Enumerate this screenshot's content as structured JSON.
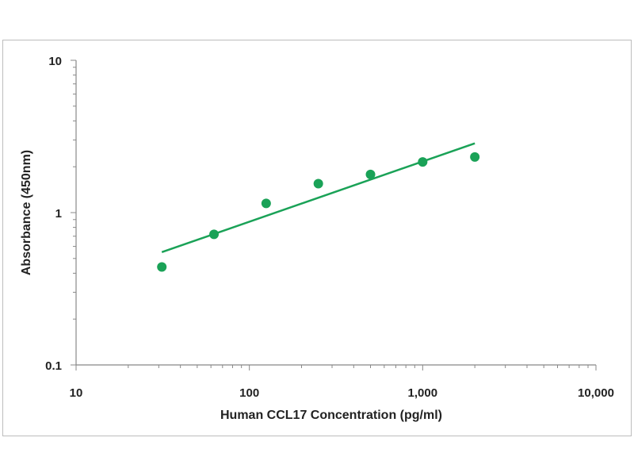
{
  "chart_data": {
    "type": "scatter",
    "title": "",
    "xlabel": "Human CCL17 Concentration (pg/ml)",
    "ylabel": "Absorbance (450nm)",
    "x_scale": "log",
    "y_scale": "log",
    "xlim": [
      10,
      10000
    ],
    "ylim": [
      0.1,
      10
    ],
    "x_ticks": [
      10,
      100,
      1000,
      10000
    ],
    "x_tick_labels": [
      "10",
      "100",
      "1,000",
      "10,000"
    ],
    "y_ticks": [
      0.1,
      1,
      10
    ],
    "y_tick_labels": [
      "0.1",
      "1",
      "10"
    ],
    "grid": false,
    "legend": "none",
    "series": [
      {
        "x": [
          31.25,
          62.5,
          125,
          250,
          500,
          1000,
          2000
        ],
        "y": [
          0.44,
          0.72,
          1.15,
          1.55,
          1.78,
          2.15,
          2.32
        ]
      }
    ],
    "trendline": {
      "x": [
        31.25,
        2000
      ],
      "y": [
        0.55,
        2.85
      ]
    },
    "colors": {
      "points": "#1aa257",
      "line": "#1aa257",
      "axis": "#888888"
    }
  }
}
